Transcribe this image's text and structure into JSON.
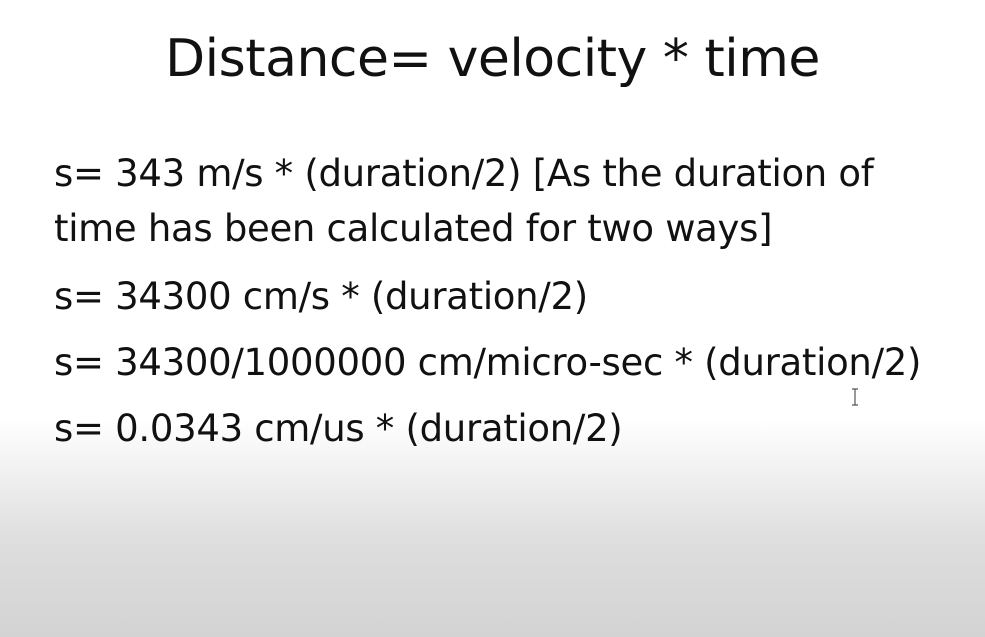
{
  "slide": {
    "title": "Distance= velocity * time",
    "lines": [
      "s= 343 m/s * (duration/2) [As the duration of",
      "time has been calculated for two ways]",
      "s= 34300 cm/s * (duration/2)",
      "s= 34300/1000000 cm/micro-sec * (duration/2)",
      "s= 0.0343 cm/us * (duration/2)"
    ]
  },
  "cursor": {
    "icon": "text-cursor-icon"
  }
}
